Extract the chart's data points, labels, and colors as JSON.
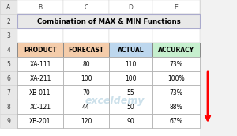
{
  "title": "Combination of MAX & MIN Functions",
  "headers": [
    "PRODUCT",
    "FORECAST",
    "ACTUAL",
    "ACCURACY"
  ],
  "header_colors": [
    "#F4CCAA",
    "#F4CCAA",
    "#BDD7EE",
    "#C6EFCE"
  ],
  "rows": [
    [
      "XA-111",
      "80",
      "110",
      "73%"
    ],
    [
      "XA-211",
      "100",
      "100",
      "100%"
    ],
    [
      "XB-011",
      "70",
      "55",
      "73%"
    ],
    [
      "XC-121",
      "44",
      "50",
      "88%"
    ],
    [
      "XB-201",
      "120",
      "90",
      "67%"
    ]
  ],
  "title_bg": "#E8E8E8",
  "title_border": "#AAAACC",
  "cell_bg": "#FFFFFF",
  "border_color": "#999999",
  "title_color": "#000000",
  "text_color": "#000000",
  "arrow_color": "#FF0000",
  "watermark": "exceldemy",
  "watermark_color": "#AACCDD",
  "sheet_bg": "#F2F2F2",
  "col_letters": [
    "A",
    "B",
    "C",
    "D",
    "E"
  ],
  "row_numbers": [
    "1",
    "2",
    "3",
    "4",
    "5",
    "6",
    "7",
    "8",
    "9"
  ],
  "col_header_bg": "#E8E8E8",
  "row_header_bg": "#E8E8E8",
  "grid_line_color": "#D0D0D0"
}
